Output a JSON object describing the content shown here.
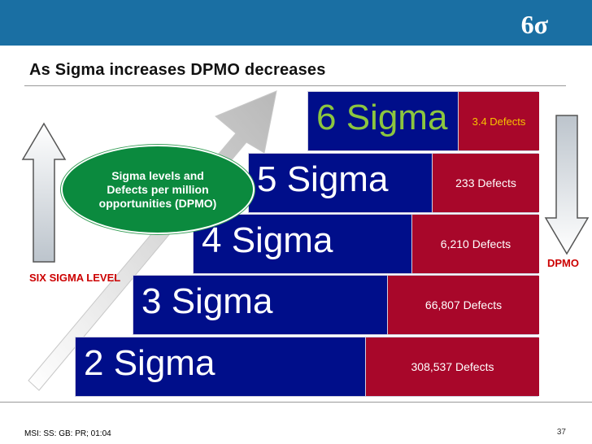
{
  "header": {
    "logo": "6σ",
    "title": "As Sigma increases DPMO decreases"
  },
  "callout": {
    "text": "Sigma levels and Defects per million opportunities (DPMO)"
  },
  "levels": [
    {
      "sigma": "6 Sigma",
      "defects": "3.4 Defects"
    },
    {
      "sigma": "5 Sigma",
      "defects": "233 Defects"
    },
    {
      "sigma": "4 Sigma",
      "defects": "6,210 Defects"
    },
    {
      "sigma": "3 Sigma",
      "defects": "66,807 Defects"
    },
    {
      "sigma": "2 Sigma",
      "defects": "308,537 Defects"
    }
  ],
  "labels": {
    "left": "SIX SIGMA LEVEL",
    "right": "DPMO"
  },
  "footer": {
    "left": "MSI: SS: GB: PR; 01:04",
    "page": "37"
  },
  "colors": {
    "banner": "#1a6fa3",
    "bar": "#000e8a",
    "defects": "#a8072a",
    "oval": "#0b8a3e",
    "six_sigma_text": "#8cc63f",
    "six_sigma_defects_text": "#f7c300",
    "label_red": "#cc0000"
  }
}
